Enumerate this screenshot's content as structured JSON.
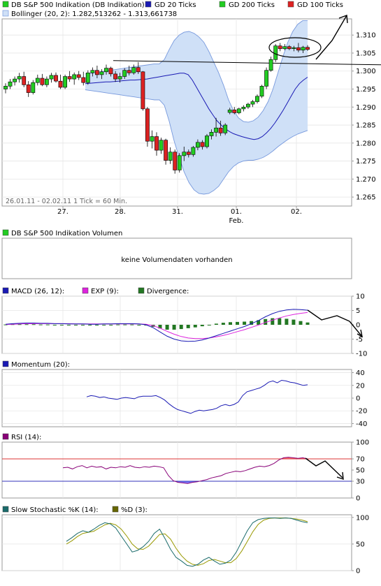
{
  "colors": {
    "up_candle": "#22cc22",
    "down_candle": "#dd2222",
    "gd20": "#1a1ab4",
    "gd200": "#22aa22",
    "gd100": "#cc2222",
    "bollinger_fill": "#cfe0f7",
    "bollinger_line": "#7799dd",
    "macd": "#1a1ab4",
    "exp": "#dd22dd",
    "divergence": "#227722",
    "momentum": "#1a1ab4",
    "rsi": "#880077",
    "rsi_upper_fill": "#ff6666",
    "rsi_lower_fill": "#6666ff",
    "stoch_k": "#1a6b6b",
    "stoch_d": "#666600"
  },
  "legend": {
    "main_title": "DB S&P 500 Indikation (DB Indikation)",
    "gd20": "GD 20 Ticks",
    "gd200": "GD 200 Ticks",
    "gd100": "GD 100 Ticks",
    "bollinger": "Bollinger (20, 2): 1.282,513262 - 1.313,661738",
    "range_note": "26.01.11 - 02.02.11   1 Tick = 60 Min.",
    "volume_title": "DB S&P 500 Indikation Volumen",
    "volume_message": "keine Volumendaten vorhanden",
    "macd": "MACD (26, 12):",
    "exp": "EXP (9):",
    "divergence": "Divergence:",
    "momentum": "Momentum (20):",
    "rsi": "RSI (14):",
    "stoch_k": "Slow Stochastic %K (14):",
    "stoch_d": "%D (3):"
  },
  "chart_data": [
    {
      "type": "candlestick",
      "title": "DB S&P 500 Indikation (DB Indikation)",
      "x_tick_labels": [
        "27.",
        "28.",
        "31.",
        "01.",
        "02."
      ],
      "x_sub_label": "Feb.",
      "y_tick_labels": [
        "1.265",
        "1.270",
        "1.275",
        "1.280",
        "1.285",
        "1.290",
        "1.295",
        "1.300",
        "1.305",
        "1.310"
      ],
      "ylim": [
        1.2625,
        1.3145
      ],
      "candles": [
        {
          "o": 1.295,
          "h": 1.2966,
          "l": 1.2938,
          "c": 1.2958
        },
        {
          "o": 1.2958,
          "h": 1.2978,
          "l": 1.295,
          "c": 1.297
        },
        {
          "o": 1.297,
          "h": 1.2985,
          "l": 1.296,
          "c": 1.2978
        },
        {
          "o": 1.2978,
          "h": 1.2995,
          "l": 1.2968,
          "c": 1.2985
        },
        {
          "o": 1.2985,
          "h": 1.2998,
          "l": 1.2955,
          "c": 1.2962
        },
        {
          "o": 1.2962,
          "h": 1.2972,
          "l": 1.2928,
          "c": 1.294
        },
        {
          "o": 1.294,
          "h": 1.2975,
          "l": 1.2935,
          "c": 1.2968
        },
        {
          "o": 1.2968,
          "h": 1.299,
          "l": 1.296,
          "c": 1.298
        },
        {
          "o": 1.298,
          "h": 1.2992,
          "l": 1.2958,
          "c": 1.2962
        },
        {
          "o": 1.2962,
          "h": 1.2985,
          "l": 1.2955,
          "c": 1.2978
        },
        {
          "o": 1.2978,
          "h": 1.2995,
          "l": 1.2968,
          "c": 1.2988
        },
        {
          "o": 1.2988,
          "h": 1.2996,
          "l": 1.2968,
          "c": 1.2972
        },
        {
          "o": 1.2972,
          "h": 1.299,
          "l": 1.295,
          "c": 1.2955
        },
        {
          "o": 1.2955,
          "h": 1.299,
          "l": 1.295,
          "c": 1.2985
        },
        {
          "o": 1.2985,
          "h": 1.3,
          "l": 1.297,
          "c": 1.2978
        },
        {
          "o": 1.2978,
          "h": 1.2996,
          "l": 1.2962,
          "c": 1.299
        },
        {
          "o": 1.299,
          "h": 1.3,
          "l": 1.2975,
          "c": 1.2982
        },
        {
          "o": 1.2982,
          "h": 1.2998,
          "l": 1.296,
          "c": 1.2968
        },
        {
          "o": 1.2968,
          "h": 1.3002,
          "l": 1.2962,
          "c": 1.2995
        },
        {
          "o": 1.2995,
          "h": 1.301,
          "l": 1.2985,
          "c": 1.3002
        },
        {
          "o": 1.3002,
          "h": 1.3015,
          "l": 1.298,
          "c": 1.299
        },
        {
          "o": 1.299,
          "h": 1.3005,
          "l": 1.2978,
          "c": 1.2998
        },
        {
          "o": 1.2998,
          "h": 1.3018,
          "l": 1.299,
          "c": 1.3008
        },
        {
          "o": 1.3008,
          "h": 1.3012,
          "l": 1.2985,
          "c": 1.2992
        },
        {
          "o": 1.2992,
          "h": 1.3,
          "l": 1.297,
          "c": 1.2978
        },
        {
          "o": 1.2978,
          "h": 1.2995,
          "l": 1.2968,
          "c": 1.2985
        },
        {
          "o": 1.2985,
          "h": 1.3008,
          "l": 1.2978,
          "c": 1.3002
        },
        {
          "o": 1.3002,
          "h": 1.3015,
          "l": 1.2988,
          "c": 1.2995
        },
        {
          "o": 1.2995,
          "h": 1.3018,
          "l": 1.299,
          "c": 1.301
        },
        {
          "o": 1.301,
          "h": 1.3025,
          "l": 1.2992,
          "c": 1.2998
        },
        {
          "o": 1.2998,
          "h": 1.3,
          "l": 1.289,
          "c": 1.2895
        },
        {
          "o": 1.2895,
          "h": 1.29,
          "l": 1.279,
          "c": 1.2805
        },
        {
          "o": 1.2805,
          "h": 1.2835,
          "l": 1.2785,
          "c": 1.2818
        },
        {
          "o": 1.2818,
          "h": 1.283,
          "l": 1.2765,
          "c": 1.278
        },
        {
          "o": 1.278,
          "h": 1.2815,
          "l": 1.277,
          "c": 1.2808
        },
        {
          "o": 1.2808,
          "h": 1.2812,
          "l": 1.274,
          "c": 1.2752
        },
        {
          "o": 1.2752,
          "h": 1.2788,
          "l": 1.2742,
          "c": 1.2775
        },
        {
          "o": 1.2775,
          "h": 1.2782,
          "l": 1.2715,
          "c": 1.2725
        },
        {
          "o": 1.2725,
          "h": 1.2772,
          "l": 1.2718,
          "c": 1.2765
        },
        {
          "o": 1.2765,
          "h": 1.279,
          "l": 1.275,
          "c": 1.2775
        },
        {
          "o": 1.2775,
          "h": 1.2782,
          "l": 1.276,
          "c": 1.2768
        },
        {
          "o": 1.2768,
          "h": 1.2792,
          "l": 1.2762,
          "c": 1.2788
        },
        {
          "o": 1.2788,
          "h": 1.281,
          "l": 1.278,
          "c": 1.2802
        },
        {
          "o": 1.2802,
          "h": 1.2808,
          "l": 1.2782,
          "c": 1.279
        },
        {
          "o": 1.279,
          "h": 1.2825,
          "l": 1.2785,
          "c": 1.282
        },
        {
          "o": 1.282,
          "h": 1.2838,
          "l": 1.281,
          "c": 1.283
        },
        {
          "o": 1.283,
          "h": 1.287,
          "l": 1.2818,
          "c": 1.2842
        },
        {
          "o": 1.2842,
          "h": 1.2862,
          "l": 1.282,
          "c": 1.2828
        },
        {
          "o": 1.2828,
          "h": 1.2855,
          "l": 1.2822,
          "c": 1.285
        },
        {
          "o": 1.2885,
          "h": 1.2898,
          "l": 1.288,
          "c": 1.2892
        },
        {
          "o": 1.2892,
          "h": 1.29,
          "l": 1.288,
          "c": 1.2884
        },
        {
          "o": 1.2884,
          "h": 1.2898,
          "l": 1.288,
          "c": 1.2895
        },
        {
          "o": 1.2895,
          "h": 1.2905,
          "l": 1.2888,
          "c": 1.29
        },
        {
          "o": 1.29,
          "h": 1.2912,
          "l": 1.2895,
          "c": 1.2908
        },
        {
          "o": 1.2908,
          "h": 1.292,
          "l": 1.29,
          "c": 1.2915
        },
        {
          "o": 1.2915,
          "h": 1.2935,
          "l": 1.291,
          "c": 1.293
        },
        {
          "o": 1.293,
          "h": 1.2962,
          "l": 1.2925,
          "c": 1.2958
        },
        {
          "o": 1.2958,
          "h": 1.301,
          "l": 1.295,
          "c": 1.3002
        },
        {
          "o": 1.3002,
          "h": 1.304,
          "l": 1.2998,
          "c": 1.3032
        },
        {
          "o": 1.3032,
          "h": 1.3075,
          "l": 1.3025,
          "c": 1.307
        },
        {
          "o": 1.307,
          "h": 1.3078,
          "l": 1.3055,
          "c": 1.3062
        },
        {
          "o": 1.3062,
          "h": 1.3075,
          "l": 1.3058,
          "c": 1.3068
        },
        {
          "o": 1.3068,
          "h": 1.3072,
          "l": 1.3058,
          "c": 1.3062
        },
        {
          "o": 1.3062,
          "h": 1.307,
          "l": 1.3055,
          "c": 1.3065
        },
        {
          "o": 1.3065,
          "h": 1.3078,
          "l": 1.3052,
          "c": 1.3058
        },
        {
          "o": 1.3058,
          "h": 1.307,
          "l": 1.305,
          "c": 1.3066
        },
        {
          "o": 1.3066,
          "h": 1.3072,
          "l": 1.3056,
          "c": 1.306
        }
      ],
      "gd20": [
        1.2965,
        1.2966,
        1.2967,
        1.2968,
        1.2969,
        1.297,
        1.297,
        1.2971,
        1.2972,
        1.2973,
        1.2974,
        1.2975,
        1.2975,
        1.2976,
        1.2977,
        1.2978,
        1.298,
        1.2982,
        1.2984,
        1.2986,
        1.2988,
        1.299,
        1.2992,
        1.2994,
        1.2994,
        1.299,
        1.2975,
        1.2955,
        1.2935,
        1.2915,
        1.2895,
        1.2878,
        1.2862,
        1.285,
        1.284,
        1.2832,
        1.2826,
        1.2822,
        1.2818,
        1.2815,
        1.2812,
        1.281,
        1.2812,
        1.2818,
        1.2828,
        1.284,
        1.2855,
        1.2872,
        1.289,
        1.291,
        1.293,
        1.295,
        1.2965,
        1.2975,
        1.2983
      ],
      "bollinger_upper": [
        1.2992,
        1.2994,
        1.2996,
        1.2998,
        1.3,
        1.3002,
        1.3004,
        1.3006,
        1.3008,
        1.301,
        1.3012,
        1.3014,
        1.3016,
        1.3018,
        1.302,
        1.302,
        1.3032,
        1.306,
        1.3085,
        1.31,
        1.3108,
        1.311,
        1.3105,
        1.3095,
        1.308,
        1.3055,
        1.3025,
        1.2995,
        1.296,
        1.292,
        1.289,
        1.287,
        1.286,
        1.2858,
        1.2862,
        1.2872,
        1.289,
        1.2915,
        1.295,
        1.2995,
        1.304,
        1.308,
        1.311,
        1.313,
        1.314,
        1.314
      ],
      "bollinger_lower": [
        1.2948,
        1.2946,
        1.2944,
        1.2942,
        1.294,
        1.2938,
        1.2936,
        1.2934,
        1.2932,
        1.293,
        1.2928,
        1.2926,
        1.2924,
        1.2922,
        1.292,
        1.292,
        1.2905,
        1.286,
        1.2805,
        1.276,
        1.272,
        1.269,
        1.267,
        1.266,
        1.2658,
        1.266,
        1.2668,
        1.268,
        1.27,
        1.272,
        1.2735,
        1.2745,
        1.275,
        1.2752,
        1.2752,
        1.2755,
        1.276,
        1.2768,
        1.2778,
        1.279,
        1.28,
        1.281,
        1.2818,
        1.2825,
        1.283,
        1.2835
      ],
      "horizontal_line": 1.3025,
      "annotations": [
        "ellipse around top candles",
        "hand-drawn arrow up-right"
      ]
    },
    {
      "type": "text",
      "title": "DB S&P 500 Indikation Volumen",
      "message": "keine Volumendaten vorhanden"
    },
    {
      "type": "line",
      "title": "MACD (26, 12)",
      "y_tick_labels": [
        "-10",
        "-5",
        "0",
        "5",
        "10"
      ],
      "ylim": [
        -10,
        10
      ],
      "macd": [
        0.2,
        0.4,
        0.5,
        0.6,
        0.6,
        0.5,
        0.5,
        0.4,
        0.4,
        0.3,
        0.3,
        0.3,
        0.2,
        0.2,
        0.3,
        0.3,
        0.4,
        0.4,
        0.4,
        0.3,
        0.0,
        -1.0,
        -2.5,
        -4.0,
        -5.0,
        -5.6,
        -5.8,
        -5.7,
        -5.3,
        -4.6,
        -3.8,
        -3.0,
        -2.2,
        -1.4,
        -0.6,
        0.4,
        1.5,
        2.8,
        3.9,
        4.7,
        5.2,
        5.4,
        5.3,
        5.1
      ],
      "exp": [
        0.1,
        0.2,
        0.3,
        0.4,
        0.4,
        0.4,
        0.4,
        0.4,
        0.4,
        0.4,
        0.3,
        0.3,
        0.3,
        0.3,
        0.3,
        0.3,
        0.3,
        0.3,
        0.3,
        0.3,
        0.2,
        -0.3,
        -1.2,
        -2.3,
        -3.3,
        -4.1,
        -4.6,
        -4.8,
        -4.8,
        -4.6,
        -4.2,
        -3.7,
        -3.1,
        -2.4,
        -1.7,
        -0.9,
        -0.1,
        0.8,
        1.6,
        2.4,
        3.1,
        3.6,
        4.0,
        4.3
      ],
      "divergence": [
        0.1,
        0.2,
        0.2,
        0.2,
        0.2,
        0.1,
        0.1,
        0,
        0,
        -0.1,
        0,
        0,
        -0.1,
        -0.1,
        0,
        0,
        0.1,
        0.1,
        0.1,
        0,
        -0.2,
        -0.7,
        -1.3,
        -1.7,
        -1.7,
        -1.5,
        -1.2,
        -0.9,
        -0.5,
        0,
        0.4,
        0.7,
        0.9,
        1.0,
        1.1,
        1.3,
        1.6,
        2.0,
        2.3,
        2.3,
        2.1,
        1.8,
        1.3,
        0.8
      ]
    },
    {
      "type": "line",
      "title": "Momentum (20)",
      "y_tick_labels": [
        "-40",
        "-20",
        "0",
        "20",
        "40"
      ],
      "ylim": [
        -45,
        45
      ],
      "values": [
        2,
        4,
        3,
        1,
        2,
        0,
        -1,
        -2,
        0,
        1,
        0,
        -1,
        2,
        3,
        3,
        3,
        4,
        1,
        -3,
        -9,
        -14,
        -18,
        -20,
        -22,
        -24,
        -21,
        -19,
        -20,
        -19,
        -18,
        -16,
        -12,
        -10,
        -12,
        -10,
        -6,
        4,
        10,
        12,
        14,
        16,
        20,
        25,
        27,
        24,
        28,
        27,
        25,
        24,
        22,
        20,
        21
      ]
    },
    {
      "type": "line",
      "title": "RSI (14)",
      "y_tick_labels": [
        "0",
        "30",
        "50",
        "70",
        "100"
      ],
      "ylim": [
        0,
        100
      ],
      "reference_lines": [
        30,
        70
      ],
      "values": [
        54,
        55,
        52,
        56,
        58,
        54,
        57,
        55,
        56,
        52,
        55,
        54,
        56,
        55,
        58,
        55,
        54,
        56,
        55,
        57,
        56,
        54,
        40,
        31,
        28,
        27,
        26,
        28,
        29,
        31,
        33,
        36,
        38,
        40,
        44,
        46,
        48,
        47,
        49,
        52,
        55,
        57,
        56,
        58,
        62,
        68,
        72,
        73,
        72,
        71,
        72,
        70
      ]
    },
    {
      "type": "line",
      "title": "Slow Stochastic %K (14) / %D (3)",
      "y_tick_labels": [
        "0",
        "50",
        "100"
      ],
      "ylim": [
        0,
        105
      ],
      "k": [
        55,
        62,
        70,
        75,
        72,
        78,
        85,
        90,
        88,
        80,
        65,
        50,
        35,
        38,
        45,
        55,
        70,
        78,
        60,
        40,
        25,
        18,
        10,
        8,
        12,
        20,
        25,
        18,
        12,
        14,
        20,
        35,
        55,
        75,
        90,
        96,
        98,
        99,
        99,
        98,
        99,
        98,
        95,
        92,
        90
      ],
      "d": [
        50,
        56,
        64,
        70,
        72,
        74,
        80,
        86,
        89,
        86,
        78,
        65,
        50,
        41,
        40,
        46,
        57,
        68,
        69,
        59,
        42,
        28,
        18,
        12,
        10,
        13,
        19,
        21,
        18,
        15,
        15,
        23,
        37,
        55,
        73,
        87,
        95,
        98,
        99,
        99,
        99,
        98,
        97,
        95,
        92
      ]
    }
  ]
}
